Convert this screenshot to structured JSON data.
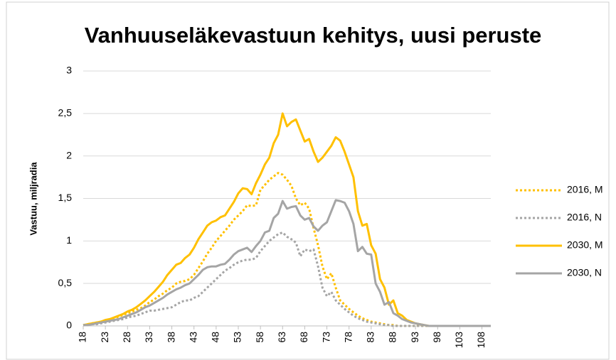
{
  "chart_data": {
    "type": "line",
    "title": "Vanhuuseläkevastuun kehitys, uusi peruste",
    "y_label": "Vastuu, miljradia",
    "x": [
      18,
      19,
      20,
      21,
      22,
      23,
      24,
      25,
      26,
      27,
      28,
      29,
      30,
      31,
      32,
      33,
      34,
      35,
      36,
      37,
      38,
      39,
      40,
      41,
      42,
      43,
      44,
      45,
      46,
      47,
      48,
      49,
      50,
      51,
      52,
      53,
      54,
      55,
      56,
      57,
      58,
      59,
      60,
      61,
      62,
      63,
      64,
      65,
      66,
      67,
      68,
      69,
      70,
      71,
      72,
      73,
      74,
      75,
      76,
      77,
      78,
      79,
      80,
      81,
      82,
      83,
      84,
      85,
      86,
      87,
      88,
      89,
      90,
      91,
      92,
      93,
      94,
      95,
      96,
      97,
      98,
      99,
      100,
      101,
      102,
      103,
      104,
      105,
      106,
      107,
      108,
      109,
      110
    ],
    "xlim": [
      18,
      110
    ],
    "xticks": [
      18,
      23,
      28,
      33,
      38,
      43,
      48,
      53,
      58,
      63,
      68,
      73,
      78,
      83,
      88,
      93,
      98,
      103,
      108
    ],
    "ylim": [
      0,
      3
    ],
    "yticks": [
      0,
      {
        "value": 0.5,
        "label": "0,5"
      },
      1,
      {
        "value": 1.5,
        "label": "1,5"
      },
      2,
      {
        "value": 2.5,
        "label": "2,5"
      },
      3
    ],
    "grid": true,
    "legend": "right",
    "series": [
      {
        "name": "2016, M",
        "color": "#ffc000",
        "dash": "dotted",
        "values": [
          0.01,
          0.02,
          0.03,
          0.04,
          0.05,
          0.06,
          0.07,
          0.09,
          0.11,
          0.13,
          0.15,
          0.17,
          0.19,
          0.21,
          0.24,
          0.28,
          0.31,
          0.35,
          0.38,
          0.42,
          0.45,
          0.5,
          0.52,
          0.53,
          0.55,
          0.6,
          0.68,
          0.76,
          0.85,
          0.92,
          1.0,
          1.06,
          1.12,
          1.18,
          1.25,
          1.3,
          1.35,
          1.42,
          1.41,
          1.42,
          1.6,
          1.66,
          1.72,
          1.76,
          1.8,
          1.78,
          1.72,
          1.65,
          1.5,
          1.42,
          1.45,
          1.38,
          1.15,
          0.95,
          0.7,
          0.55,
          0.62,
          0.45,
          0.3,
          0.25,
          0.2,
          0.16,
          0.12,
          0.09,
          0.07,
          0.05,
          0.04,
          0.03,
          0.02,
          0.01,
          0.01,
          0,
          0,
          0,
          0,
          0,
          0,
          0,
          0,
          0,
          0,
          0,
          0,
          0,
          0,
          0,
          0,
          0,
          0,
          0,
          0,
          0,
          0
        ]
      },
      {
        "name": "2016, N",
        "color": "#a5a5a5",
        "dash": "dotted",
        "values": [
          0.01,
          0.01,
          0.02,
          0.02,
          0.03,
          0.04,
          0.05,
          0.06,
          0.07,
          0.08,
          0.1,
          0.11,
          0.12,
          0.14,
          0.16,
          0.18,
          0.18,
          0.19,
          0.2,
          0.21,
          0.22,
          0.25,
          0.28,
          0.3,
          0.3,
          0.33,
          0.35,
          0.4,
          0.45,
          0.5,
          0.55,
          0.6,
          0.65,
          0.68,
          0.72,
          0.75,
          0.77,
          0.78,
          0.78,
          0.8,
          0.88,
          0.94,
          1.0,
          1.04,
          1.08,
          1.1,
          1.05,
          1.02,
          0.98,
          0.82,
          0.9,
          0.88,
          0.9,
          0.7,
          0.45,
          0.35,
          0.4,
          0.3,
          0.25,
          0.2,
          0.16,
          0.12,
          0.09,
          0.07,
          0.05,
          0.04,
          0.03,
          0.02,
          0.01,
          0.01,
          0,
          0,
          0,
          0,
          0,
          0,
          0,
          0,
          0,
          0,
          0,
          0,
          0,
          0,
          0,
          0,
          0,
          0,
          0,
          0,
          0,
          0,
          0
        ]
      },
      {
        "name": "2030, M",
        "color": "#ffc000",
        "dash": "solid",
        "values": [
          0.01,
          0.02,
          0.03,
          0.04,
          0.05,
          0.07,
          0.08,
          0.1,
          0.12,
          0.14,
          0.17,
          0.19,
          0.22,
          0.26,
          0.3,
          0.35,
          0.4,
          0.46,
          0.52,
          0.6,
          0.66,
          0.72,
          0.74,
          0.8,
          0.84,
          0.92,
          1.02,
          1.1,
          1.18,
          1.22,
          1.24,
          1.28,
          1.3,
          1.38,
          1.46,
          1.56,
          1.62,
          1.61,
          1.55,
          1.68,
          1.78,
          1.9,
          1.98,
          2.15,
          2.25,
          2.5,
          2.35,
          2.4,
          2.43,
          2.3,
          2.17,
          2.2,
          2.05,
          1.93,
          1.98,
          2.05,
          2.12,
          2.22,
          2.18,
          2.05,
          1.9,
          1.75,
          1.35,
          1.18,
          1.2,
          0.95,
          0.85,
          0.55,
          0.45,
          0.25,
          0.3,
          0.15,
          0.12,
          0.07,
          0.05,
          0.03,
          0.02,
          0.01,
          0,
          0,
          0,
          0,
          0,
          0,
          0,
          0,
          0,
          0,
          0,
          0,
          0,
          0,
          0
        ]
      },
      {
        "name": "2030, N",
        "color": "#a5a5a5",
        "dash": "solid",
        "values": [
          0.01,
          0.01,
          0.02,
          0.03,
          0.04,
          0.05,
          0.06,
          0.07,
          0.08,
          0.1,
          0.12,
          0.14,
          0.16,
          0.19,
          0.22,
          0.24,
          0.27,
          0.3,
          0.33,
          0.37,
          0.4,
          0.43,
          0.45,
          0.48,
          0.5,
          0.55,
          0.6,
          0.66,
          0.69,
          0.7,
          0.7,
          0.72,
          0.73,
          0.78,
          0.84,
          0.88,
          0.9,
          0.92,
          0.87,
          0.94,
          1.0,
          1.1,
          1.12,
          1.27,
          1.32,
          1.47,
          1.38,
          1.4,
          1.41,
          1.3,
          1.25,
          1.27,
          1.17,
          1.12,
          1.18,
          1.22,
          1.35,
          1.48,
          1.47,
          1.45,
          1.35,
          1.2,
          0.88,
          0.93,
          0.85,
          0.84,
          0.5,
          0.4,
          0.25,
          0.28,
          0.15,
          0.12,
          0.08,
          0.06,
          0.04,
          0.03,
          0.02,
          0.01,
          0,
          0,
          0,
          0,
          0,
          0,
          0,
          0,
          0,
          0,
          0,
          0,
          0,
          0,
          0
        ]
      }
    ]
  }
}
